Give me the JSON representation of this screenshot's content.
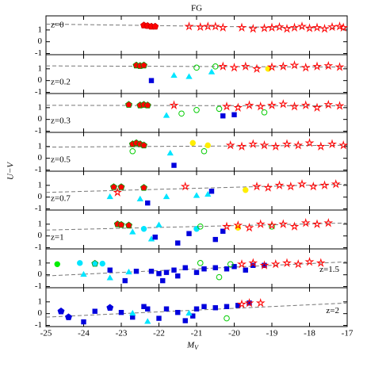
{
  "chart_data": [
    {
      "type": "scatter",
      "title": "FG",
      "ylabel": "U−V",
      "label": "z=0",
      "label_corner": "upper left",
      "ylim": [
        -1.1,
        2.2
      ],
      "yticks": [
        -1,
        0,
        1
      ],
      "fit": {
        "x": [
          -25,
          -17
        ],
        "y": [
          1.5,
          1.15
        ]
      },
      "series": [
        {
          "marker": "pentagon",
          "color": "#ff0000",
          "edge": "#cc0000",
          "x": [
            -22.4,
            -22.3,
            -22.2,
            -22.1
          ],
          "y": [
            1.4,
            1.35,
            1.3,
            1.3
          ]
        },
        {
          "marker": "star",
          "color": "#ff0000",
          "edge": "#ff0000",
          "x": [
            -21.2,
            -20.9,
            -20.7,
            -20.5,
            -20.3,
            -19.8,
            -19.5,
            -19.2,
            -19.0,
            -18.8,
            -18.6,
            -18.4,
            -18.2,
            -18.0,
            -17.8,
            -17.6,
            -17.4,
            -17.2,
            -17.1
          ],
          "y": [
            1.3,
            1.25,
            1.3,
            1.3,
            1.2,
            1.2,
            1.1,
            1.15,
            1.2,
            1.25,
            1.1,
            1.2,
            1.3,
            1.15,
            1.2,
            1.1,
            1.25,
            1.3,
            1.2
          ]
        }
      ]
    },
    {
      "type": "scatter",
      "label": "z=0.2",
      "label_corner": "lower left",
      "ylim": [
        -1.1,
        2.2
      ],
      "yticks": [
        -1,
        0,
        1
      ],
      "fit": {
        "x": [
          -25,
          -17
        ],
        "y": [
          1.25,
          1.15
        ]
      },
      "series": [
        {
          "marker": "pentagon",
          "color": "#ff0000",
          "edge": "#009900",
          "x": [
            -22.6,
            -22.5,
            -22.4
          ],
          "y": [
            1.3,
            1.25,
            1.3
          ]
        },
        {
          "marker": "triangle",
          "color": "#00e5ff",
          "edge": "#00e5ff",
          "x": [
            -21.6,
            -21.2,
            -20.6
          ],
          "y": [
            0.4,
            0.3,
            0.7
          ]
        },
        {
          "marker": "square",
          "color": "#0000dd",
          "edge": "#0000dd",
          "x": [
            -22.2
          ],
          "y": [
            0.0
          ]
        },
        {
          "marker": "circle",
          "color": "none",
          "edge": "#00cc00",
          "x": [
            -21.0,
            -20.5
          ],
          "y": [
            1.1,
            1.2
          ]
        },
        {
          "marker": "circle",
          "color": "#ffee00",
          "edge": "#ffee00",
          "x": [
            -19.1
          ],
          "y": [
            1.0
          ]
        },
        {
          "marker": "star",
          "color": "#ff0000",
          "edge": "#ff0000",
          "x": [
            -20.3,
            -20.0,
            -19.7,
            -19.4,
            -19.0,
            -18.7,
            -18.4,
            -18.1,
            -17.8,
            -17.5,
            -17.2
          ],
          "y": [
            1.2,
            1.1,
            1.2,
            1.0,
            1.15,
            1.2,
            1.3,
            1.1,
            1.2,
            1.25,
            1.15
          ]
        }
      ]
    },
    {
      "type": "scatter",
      "label": "z=0.3",
      "label_corner": "lower left",
      "ylim": [
        -1.1,
        2.2
      ],
      "yticks": [
        -1,
        0,
        1
      ],
      "fit": {
        "x": [
          -25,
          -17
        ],
        "y": [
          1.2,
          1.15
        ]
      },
      "series": [
        {
          "marker": "pentagon",
          "color": "#ff0000",
          "edge": "#009900",
          "x": [
            -22.8,
            -22.5,
            -22.4,
            -22.3
          ],
          "y": [
            1.25,
            1.2,
            1.25,
            1.2
          ]
        },
        {
          "marker": "triangle",
          "color": "#00e5ff",
          "edge": "#00e5ff",
          "x": [
            -21.8
          ],
          "y": [
            0.3
          ]
        },
        {
          "marker": "square",
          "color": "#0000dd",
          "edge": "#0000dd",
          "x": [
            -20.3,
            -20.0
          ],
          "y": [
            0.3,
            0.4
          ]
        },
        {
          "marker": "circle",
          "color": "none",
          "edge": "#00cc00",
          "x": [
            -21.4,
            -21.0,
            -20.4,
            -19.2
          ],
          "y": [
            0.5,
            0.8,
            0.9,
            0.6
          ]
        },
        {
          "marker": "star",
          "color": "#ff0000",
          "edge": "#ff0000",
          "x": [
            -21.6,
            -20.2,
            -19.9,
            -19.6,
            -19.3,
            -19.0,
            -18.7,
            -18.4,
            -18.1,
            -17.8,
            -17.5,
            -17.2
          ],
          "y": [
            1.2,
            1.1,
            1.0,
            1.2,
            1.1,
            1.2,
            1.3,
            1.1,
            1.2,
            1.0,
            1.25,
            1.15
          ]
        }
      ]
    },
    {
      "type": "scatter",
      "label": "z=0.5",
      "label_corner": "lower left",
      "ylim": [
        -1.1,
        2.2
      ],
      "yticks": [
        -1,
        0,
        1
      ],
      "fit": {
        "x": [
          -25,
          -17
        ],
        "y": [
          0.95,
          1.1
        ]
      },
      "series": [
        {
          "marker": "pentagon",
          "color": "#ff0000",
          "edge": "#009900",
          "x": [
            -22.7,
            -22.6,
            -22.5,
            -22.4
          ],
          "y": [
            1.2,
            1.3,
            1.2,
            1.1
          ]
        },
        {
          "marker": "triangle",
          "color": "#00e5ff",
          "edge": "#00e5ff",
          "x": [
            -21.7
          ],
          "y": [
            0.4
          ]
        },
        {
          "marker": "square",
          "color": "#0000dd",
          "edge": "#0000dd",
          "x": [
            -21.6
          ],
          "y": [
            -0.6
          ]
        },
        {
          "marker": "circle",
          "color": "none",
          "edge": "#00cc00",
          "x": [
            -22.7,
            -20.8
          ],
          "y": [
            0.6,
            0.6
          ]
        },
        {
          "marker": "circle",
          "color": "#ffee00",
          "edge": "#ffee00",
          "x": [
            -21.1,
            -20.7
          ],
          "y": [
            1.3,
            1.1
          ]
        },
        {
          "marker": "star",
          "color": "#ff0000",
          "edge": "#ff0000",
          "x": [
            -20.1,
            -19.8,
            -19.5,
            -19.2,
            -18.9,
            -18.6,
            -18.3,
            -18.0,
            -17.7,
            -17.4,
            -17.1
          ],
          "y": [
            1.1,
            1.0,
            1.2,
            1.1,
            1.0,
            1.2,
            1.1,
            1.3,
            1.0,
            1.2,
            1.1
          ]
        }
      ]
    },
    {
      "type": "scatter",
      "label": "z=0.7",
      "label_corner": "lower left",
      "ylim": [
        -1.1,
        2.2
      ],
      "yticks": [
        -1,
        0,
        1
      ],
      "fit": {
        "x": [
          -25,
          -17
        ],
        "y": [
          0.4,
          1.1
        ]
      },
      "series": [
        {
          "marker": "pentagon",
          "color": "#ff0000",
          "edge": "#009900",
          "x": [
            -23.2,
            -23.0,
            -22.4
          ],
          "y": [
            0.85,
            0.85,
            0.8
          ]
        },
        {
          "marker": "triangle",
          "color": "#00e5ff",
          "edge": "#00e5ff",
          "x": [
            -23.3,
            -22.5,
            -21.8,
            -21.0,
            -20.7
          ],
          "y": [
            0.0,
            -0.2,
            0.0,
            0.1,
            0.2
          ]
        },
        {
          "marker": "square",
          "color": "#0000dd",
          "edge": "#0000dd",
          "x": [
            -22.3,
            -20.6
          ],
          "y": [
            -0.5,
            0.5
          ]
        },
        {
          "marker": "circle",
          "color": "#ffee00",
          "edge": "#ffee00",
          "x": [
            -19.7
          ],
          "y": [
            0.6
          ]
        },
        {
          "marker": "star",
          "color": "#ff0000",
          "edge": "#ff0000",
          "x": [
            -23.1,
            -21.3,
            -19.4,
            -19.1,
            -18.8,
            -18.5,
            -18.2,
            -17.9,
            -17.6,
            -17.3
          ],
          "y": [
            0.4,
            0.9,
            0.9,
            0.8,
            1.0,
            0.9,
            1.1,
            0.9,
            1.0,
            1.1
          ]
        }
      ]
    },
    {
      "type": "scatter",
      "label": "z=1",
      "label_corner": "lower left",
      "ylim": [
        -1.1,
        2.2
      ],
      "yticks": [
        -1,
        0,
        1
      ],
      "fit": {
        "x": [
          -25,
          -17
        ],
        "y": [
          0.5,
          1.1
        ]
      },
      "series": [
        {
          "marker": "pentagon",
          "color": "#ff0000",
          "edge": "#009900",
          "x": [
            -23.1,
            -23.0,
            -22.8
          ],
          "y": [
            1.0,
            0.95,
            0.9
          ]
        },
        {
          "marker": "triangle",
          "color": "#00e5ff",
          "edge": "#00e5ff",
          "x": [
            -22.7,
            -22.2,
            -22.0
          ],
          "y": [
            0.3,
            -0.3,
            0.9
          ]
        },
        {
          "marker": "circle",
          "color": "#00e5ff",
          "edge": "#00e5ff",
          "x": [
            -22.4,
            -21.0
          ],
          "y": [
            0.6,
            0.6
          ]
        },
        {
          "marker": "square",
          "color": "#0000dd",
          "edge": "#0000dd",
          "x": [
            -22.1,
            -21.5,
            -21.2,
            -20.5,
            -20.3
          ],
          "y": [
            -0.1,
            -0.6,
            0.2,
            -0.3,
            0.4
          ]
        },
        {
          "marker": "circle",
          "color": "none",
          "edge": "#00cc00",
          "x": [
            -20.9,
            -19.0
          ],
          "y": [
            0.8,
            0.8
          ]
        },
        {
          "marker": "circle",
          "color": "#ffee00",
          "edge": "#ffee00",
          "x": [
            -19.9
          ],
          "y": [
            0.7
          ]
        },
        {
          "marker": "star",
          "color": "#ff0000",
          "edge": "#ff0000",
          "x": [
            -20.2,
            -19.9,
            -19.6,
            -19.3,
            -19.0,
            -18.7,
            -18.4,
            -18.1,
            -17.8,
            -17.5
          ],
          "y": [
            0.8,
            0.9,
            0.7,
            1.0,
            0.9,
            1.0,
            0.8,
            1.1,
            1.0,
            1.1
          ]
        }
      ]
    },
    {
      "type": "scatter",
      "label": "z=1.5",
      "label_corner": "right",
      "ylim": [
        -1.1,
        2.2
      ],
      "yticks": [
        -1,
        0,
        1
      ],
      "fit": {
        "x": [
          -25,
          -17
        ],
        "y": [
          -0.1,
          1.1
        ]
      },
      "series": [
        {
          "marker": "circle",
          "color": "#00ee00",
          "edge": "#00ee00",
          "x": [
            -24.7
          ],
          "y": [
            0.9
          ]
        },
        {
          "marker": "circle",
          "color": "#00e5ff",
          "edge": "#00e5ff",
          "x": [
            -24.1,
            -23.5
          ],
          "y": [
            1.0,
            0.95
          ]
        },
        {
          "marker": "pentagon",
          "color": "#00e5ff",
          "edge": "#009900",
          "x": [
            -23.7
          ],
          "y": [
            0.95
          ]
        },
        {
          "marker": "triangle",
          "color": "#00e5ff",
          "edge": "#00e5ff",
          "x": [
            -24.0,
            -23.3,
            -22.8
          ],
          "y": [
            0.0,
            -0.3,
            0.2
          ]
        },
        {
          "marker": "square",
          "color": "#0000dd",
          "edge": "#0000dd",
          "x": [
            -23.3,
            -22.9,
            -22.6,
            -22.2,
            -22.0,
            -21.9,
            -21.8,
            -21.6,
            -21.5,
            -21.3,
            -21.0,
            -20.8,
            -20.5,
            -20.2,
            -20.0,
            -19.7,
            -19.5,
            -19.2
          ],
          "y": [
            0.4,
            -0.5,
            0.3,
            0.3,
            0.1,
            -0.5,
            0.2,
            0.4,
            -0.1,
            0.6,
            0.2,
            0.5,
            0.6,
            0.5,
            0.7,
            0.4,
            0.8,
            0.8
          ]
        },
        {
          "marker": "circle",
          "color": "none",
          "edge": "#00cc00",
          "x": [
            -20.9,
            -20.4,
            -20.1
          ],
          "y": [
            1.0,
            -0.2,
            0.9
          ]
        },
        {
          "marker": "star",
          "color": "#ff0000",
          "edge": "#ff0000",
          "x": [
            -19.8,
            -19.5,
            -19.2,
            -18.9,
            -18.6,
            -18.3,
            -18.0,
            -17.7
          ],
          "y": [
            0.9,
            1.0,
            0.8,
            0.9,
            1.0,
            0.9,
            1.1,
            1.0
          ]
        }
      ]
    },
    {
      "type": "scatter",
      "label": "z=2",
      "label_corner": "right",
      "ylim": [
        -1.1,
        2.2
      ],
      "yticks": [
        -1,
        0,
        1
      ],
      "xlabel": "M",
      "xlabel_sub": "V",
      "xlim": [
        -25,
        -17
      ],
      "xticks": [
        -25,
        -24,
        -23,
        -22,
        -21,
        -20,
        -19,
        -18,
        -17
      ],
      "fit": {
        "x": [
          -25,
          -17
        ],
        "y": [
          -0.3,
          0.9
        ]
      },
      "series": [
        {
          "marker": "pentagon",
          "color": "#0000dd",
          "edge": "#0000dd",
          "x": [
            -24.6,
            -24.4,
            -23.3
          ],
          "y": [
            0.2,
            -0.3,
            0.5
          ]
        },
        {
          "marker": "square",
          "color": "#0000dd",
          "edge": "#0000dd",
          "x": [
            -24.0,
            -23.7,
            -23.0,
            -22.7,
            -22.4,
            -22.3,
            -22.0,
            -21.8,
            -21.5,
            -21.3,
            -21.1,
            -21.0,
            -20.8,
            -20.5,
            -20.2,
            -19.9,
            -19.6
          ],
          "y": [
            -0.7,
            0.2,
            0.1,
            -0.3,
            0.6,
            0.4,
            -0.4,
            0.4,
            0.1,
            -0.6,
            -0.2,
            0.4,
            0.6,
            0.5,
            0.6,
            0.7,
            0.9
          ]
        },
        {
          "marker": "triangle",
          "color": "#00e5ff",
          "edge": "#00e5ff",
          "x": [
            -22.7,
            -22.3,
            -21.2
          ],
          "y": [
            0.0,
            -0.7,
            0.0
          ]
        },
        {
          "marker": "circle",
          "color": "none",
          "edge": "#00cc00",
          "x": [
            -20.2
          ],
          "y": [
            -0.4
          ]
        },
        {
          "marker": "star",
          "color": "#ff0000",
          "edge": "#ff0000",
          "x": [
            -19.8,
            -19.6,
            -19.3
          ],
          "y": [
            0.8,
            0.9,
            0.9
          ]
        }
      ]
    }
  ]
}
